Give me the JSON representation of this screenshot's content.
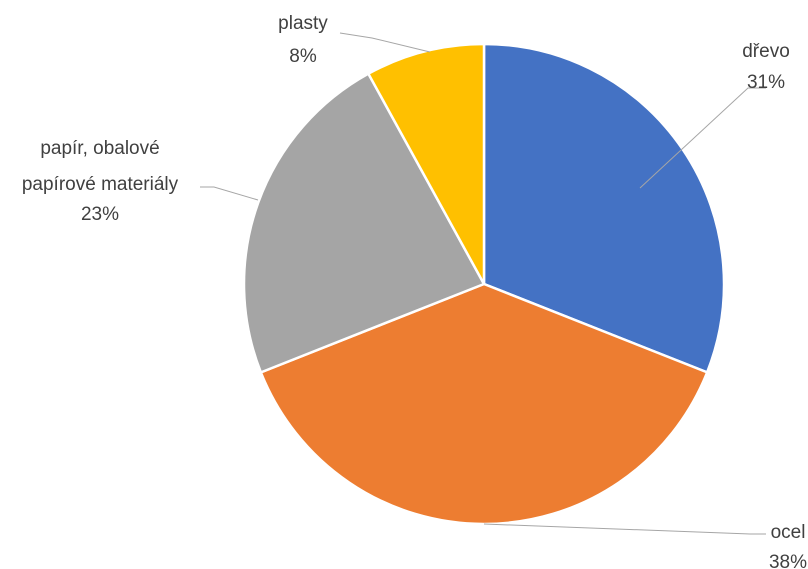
{
  "chart_data": {
    "type": "pie",
    "title": "",
    "slices": [
      {
        "label": "dřevo",
        "value": 31,
        "value_label": "31%",
        "color": "#4472c4"
      },
      {
        "label": "ocel",
        "value": 38,
        "value_label": "38%",
        "color": "#ed7d31"
      },
      {
        "label": "papír, obalové papírové materiály",
        "value": 23,
        "value_label": "23%",
        "color": "#a5a5a5"
      },
      {
        "label": "plasty",
        "value": 8,
        "value_label": "8%",
        "color": "#ffc000"
      }
    ],
    "legend": "none",
    "label_position": "outside-with-leader-lines"
  }
}
